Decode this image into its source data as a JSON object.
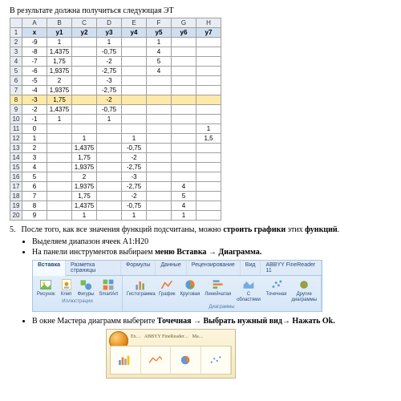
{
  "intro": "В результате должна получиться следующая ЭТ",
  "sheet": {
    "cols": [
      "",
      "A",
      "B",
      "C",
      "D",
      "E",
      "F",
      "G",
      "H"
    ],
    "headerRow": [
      "1",
      "x",
      "y1",
      "y2",
      "y3",
      "y4",
      "y5",
      "y6",
      "y7"
    ],
    "rows": [
      [
        "2",
        "-9",
        "1",
        "",
        "1",
        "",
        "1",
        "",
        ""
      ],
      [
        "3",
        "-8",
        "1,4375",
        "",
        "-0,75",
        "",
        "4",
        "",
        ""
      ],
      [
        "4",
        "-7",
        "1,75",
        "",
        "-2",
        "",
        "5",
        "",
        ""
      ],
      [
        "5",
        "-6",
        "1,9375",
        "",
        "-2,75",
        "",
        "4",
        "",
        ""
      ],
      [
        "6",
        "-5",
        "2",
        "",
        "-3",
        "",
        "",
        "",
        ""
      ],
      [
        "7",
        "-4",
        "1,9375",
        "",
        "-2,75",
        "",
        "",
        "",
        ""
      ],
      [
        "8",
        "-3",
        "1,75",
        "",
        "-2",
        "",
        "",
        "",
        ""
      ],
      [
        "9",
        "-2",
        "1,4375",
        "",
        "-0,75",
        "",
        "",
        "",
        ""
      ],
      [
        "10",
        "-1",
        "1",
        "",
        "1",
        "",
        "",
        "",
        ""
      ],
      [
        "11",
        "0",
        "",
        "",
        "",
        "",
        "",
        "",
        "1"
      ],
      [
        "12",
        "1",
        "",
        "1",
        "",
        "1",
        "",
        "",
        "1,5"
      ],
      [
        "13",
        "2",
        "",
        "1,4375",
        "",
        "-0,75",
        "",
        "",
        ""
      ],
      [
        "14",
        "3",
        "",
        "1,75",
        "",
        "-2",
        "",
        "",
        ""
      ],
      [
        "15",
        "4",
        "",
        "1,9375",
        "",
        "-2,75",
        "",
        "",
        ""
      ],
      [
        "16",
        "5",
        "",
        "2",
        "",
        "-3",
        "",
        "",
        ""
      ],
      [
        "17",
        "6",
        "",
        "1,9375",
        "",
        "-2,75",
        "",
        "4",
        ""
      ],
      [
        "18",
        "7",
        "",
        "1,75",
        "",
        "-2",
        "",
        "5",
        ""
      ],
      [
        "19",
        "8",
        "",
        "1,4375",
        "",
        "-0,75",
        "",
        "4",
        ""
      ],
      [
        "20",
        "9",
        "",
        "1",
        "",
        "1",
        "",
        "1",
        ""
      ]
    ],
    "selectedRow": 8
  },
  "step5": {
    "num": "5.",
    "text_a": "После того, как все значения функций подсчитаны, можно ",
    "text_b": "строить графики",
    "text_c": " этих ",
    "text_d": "функций",
    "bullet1": "Выделяем диапазон ячеек A1:H20",
    "bullet2_a": "На панели инструментов выбираем ",
    "bullet2_b": "меню Вставка → Диаграмма."
  },
  "ribbon": {
    "tabs": [
      "Вставка",
      "Разметка страницы",
      "Формулы",
      "Данные",
      "Рецензирование",
      "Вид",
      "ABBYY FineReader 11"
    ],
    "activeTab": 0,
    "group1": {
      "label": "Иллюстрации",
      "buttons": [
        "Рисунок",
        "Клип",
        "Фигуры",
        "SmartArt"
      ]
    },
    "group2": {
      "label": "Диаграммы",
      "buttons": [
        "Гистограмма",
        "График",
        "Круговая",
        "Линейчатая",
        "С областями",
        "Точечная",
        "Другие диаграммы"
      ]
    }
  },
  "step_ok": {
    "text_a": "В окне Мастера диаграмм выберите ",
    "text_b": "Точечная → Выбрать нужный вид→ Нажать",
    "text_c": " Ok."
  },
  "smallRibbon": {
    "tabs": [
      "Ex…",
      "ABBYY FineReader…",
      "Ma…"
    ]
  }
}
